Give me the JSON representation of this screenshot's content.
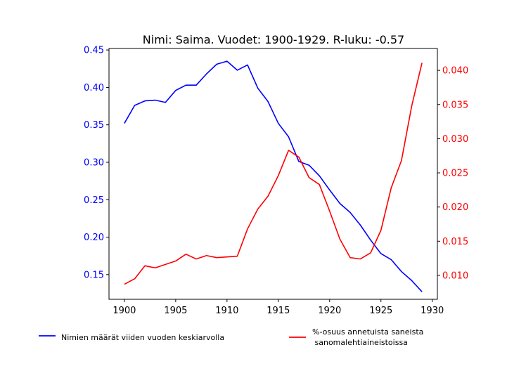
{
  "chart_data": {
    "type": "line",
    "title": "Nimi: Saima. Vuodet: 1900-1929. R-luku: -0.57",
    "x": [
      1900,
      1901,
      1902,
      1903,
      1904,
      1905,
      1906,
      1907,
      1908,
      1909,
      1910,
      1911,
      1912,
      1913,
      1914,
      1915,
      1916,
      1917,
      1918,
      1919,
      1920,
      1921,
      1922,
      1923,
      1924,
      1925,
      1926,
      1927,
      1928,
      1929
    ],
    "xlim": [
      1898.5,
      1930.5
    ],
    "x_ticks": [
      1900,
      1905,
      1910,
      1915,
      1920,
      1925,
      1930
    ],
    "series": [
      {
        "name": "Nimien määrät viiden vuoden keskiarvolla",
        "axis": "left",
        "color": "#0000ff",
        "values": [
          0.352,
          0.376,
          0.382,
          0.383,
          0.38,
          0.396,
          0.403,
          0.403,
          0.418,
          0.431,
          0.435,
          0.423,
          0.43,
          0.399,
          0.381,
          0.352,
          0.334,
          0.301,
          0.296,
          0.282,
          0.263,
          0.245,
          0.233,
          0.216,
          0.196,
          0.178,
          0.17,
          0.154,
          0.142,
          0.127
        ]
      },
      {
        "name": "%-osuus annetuista saneista\n sanomalehtiaineistoissa",
        "name_lines": [
          "%-osuus annetuista saneista",
          " sanomalehtiaineistoissa"
        ],
        "axis": "right",
        "color": "#ff0000",
        "values": [
          0.0087,
          0.0095,
          0.0114,
          0.0111,
          0.0116,
          0.0121,
          0.0131,
          0.0124,
          0.0129,
          0.0126,
          0.0127,
          0.0128,
          0.0168,
          0.0197,
          0.0216,
          0.0246,
          0.0283,
          0.0273,
          0.0243,
          0.0233,
          0.0194,
          0.0153,
          0.0126,
          0.0124,
          0.0133,
          0.0166,
          0.0228,
          0.0268,
          0.0348,
          0.0411
        ]
      }
    ],
    "y_left": {
      "lim": [
        0.117,
        0.452
      ],
      "ticks": [
        "0.15",
        "0.20",
        "0.25",
        "0.30",
        "0.35",
        "0.40",
        "0.45"
      ],
      "color": "#0000ff"
    },
    "y_right": {
      "lim": [
        0.0065,
        0.0432
      ],
      "ticks": [
        "0.010",
        "0.015",
        "0.020",
        "0.025",
        "0.030",
        "0.035",
        "0.040"
      ],
      "color": "#ff0000"
    },
    "xlabel": "",
    "grid": false,
    "legend": "below-plot"
  }
}
